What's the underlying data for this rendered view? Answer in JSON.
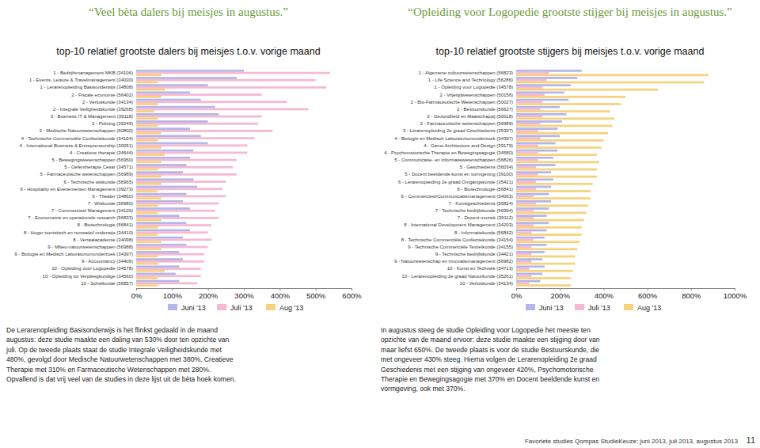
{
  "chart_data": [
    {
      "type": "bar",
      "orientation": "horizontal",
      "title": "top-10 relatief grootste dalers bij meisjes t.o.v. vorige maand",
      "annotations": [
        "“Veel bèta dalers bij meisjes in augustus.”",
        "De Lerarenopleiding Basisonderwijs is het flinkst gedaald in de maand augustus: deze studie maakte een daling van 530% door ten opzichte van juli. Op de tweede plaats staat de studie Integrale Veiligheidskunde met 480%, gevolgd door Medische Natuurwetenschappen met 380%, Creatieve Therapie met 310% en Farmaceutische Wetenschappen met 280%. Opvallend is dat vrij veel van de studies in deze lijst uit de bèta hoek komen."
      ],
      "categories": [
        "1 - Bedrijfsmanagement MKB (34106)",
        "1 - Events, Leisure & Travelmanagement (34030)",
        "1 - Lerarenopleiding Basisonderwijs (34808)",
        "2 - Fiscale economie (56402)",
        "2 - Verloskunde (34134)",
        "2 - Integrale Veiligheidskunde (39268)",
        "3 - Business IT & Management (39118)",
        "3 - Policing (39249)",
        "3 - Medische Natuurwetenschappen (50800)",
        "4 - Technische Commerciële Confectiekunde (34154)",
        "4 - International Business & Entrepreneurship (30051)",
        "4 - Creatieve therapie (34644)",
        "5 - Bewegingswetenschappen (56950)",
        "5 - Oefentherapie Cesar (34571)",
        "5 - Farmaceutische wetenschappen (56989)",
        "6 - Technische wiskunde (56965)",
        "6 - Hospitality en Evenementen Management (39273)",
        "6 - Theater (34860)",
        "7 - Wiskunde (56980)",
        "7 - Commercieel Management (34126)",
        "7 - Econometrie en operationele research (56833)",
        "8 - Biotechnologie (56841)",
        "8 - Hoger toeristisch en recreatief onderwijs (34410)",
        "8 - Vertaalacademie (34098)",
        "9 - Milieu-natuurwetenschappen (56988)",
        "9 - Biologie en Medisch Laboratoriumonderzoek (34397)",
        "9 - Accountancy (34406)",
        "10 - Opleiding voor Logopedie (34578)",
        "10 - Opleiding tot Verpleegkundige (34560)",
        "10 - Scheikunde (56857)"
      ],
      "series": [
        {
          "name": "Juni '13",
          "color": "#b3b6e8",
          "values": [
            300,
            280,
            200,
            150,
            180,
            220,
            230,
            200,
            150,
            180,
            200,
            160,
            150,
            140,
            130,
            160,
            170,
            140,
            130,
            150,
            120,
            140,
            150,
            130,
            140,
            120,
            130,
            120,
            110,
            120
          ]
        },
        {
          "name": "Juli '13",
          "color": "#f5b9d3",
          "values": [
            540,
            500,
            530,
            350,
            420,
            480,
            350,
            340,
            380,
            330,
            310,
            310,
            280,
            270,
            280,
            250,
            240,
            250,
            230,
            220,
            230,
            210,
            200,
            210,
            200,
            190,
            190,
            180,
            180,
            170
          ]
        },
        {
          "name": "Aug '13",
          "color": "#f6d27e",
          "values": [
            70,
            60,
            80,
            70,
            60,
            50,
            60,
            60,
            70,
            60,
            70,
            80,
            70,
            60,
            70,
            70,
            60,
            70,
            60,
            60,
            70,
            60,
            60,
            70,
            70,
            60,
            60,
            80,
            60,
            60
          ]
        }
      ],
      "xlim": [
        0,
        600
      ],
      "xticks": [
        {
          "value": 0,
          "label": "0%"
        },
        {
          "value": 100,
          "label": "100%"
        },
        {
          "value": 200,
          "label": "200%"
        },
        {
          "value": 300,
          "label": "300%"
        },
        {
          "value": 400,
          "label": "400%"
        },
        {
          "value": 500,
          "label": "500%"
        },
        {
          "value": 600,
          "label": "600%"
        }
      ],
      "grid": false,
      "legend": "bottom"
    },
    {
      "type": "bar",
      "orientation": "horizontal",
      "title": "top-10 relatief grootste stijgers bij meisjes t.o.v. vorige maand",
      "annotations": [
        "“Opleiding voor Logopedie grootste stijger bij meisjes in augustus.”",
        "In augustus steeg de studie Opleiding voor Logopedie het meeste ten opzichte van de maand ervoor: deze studie maakte een stijging door van maar liefst 650%. De tweede plaats is voor de studie Bestuurskunde, die met ongeveer 430% steeg. Hierna volgen de Lerarenopleiding 2e graad Geschiedenis met een stijging van ongeveer 420%, Psychomotorische Therapie en Bewegingsagogie met 370% en Docent beeldende kunst en vormgeving, ook met 370%."
      ],
      "categories": [
        "1 - Algemene cultuurwetenschappen (56823)",
        "1 - Life Science and Technology (56286)",
        "1 - Opleiding voor Logopedie (34578)",
        "2 - Vrijetijdwetenschappen (50156)",
        "2 - Bio-Farmaceutische Wetenschappen (50027)",
        "2 - Bestuurskunde (56627)",
        "3 - Gezondheid en Maatschappij (50018)",
        "3 - Farmaceutische wetenschappen (56989)",
        "3 - Lerarenopleiding 2e graad Geschiedenis (35397)",
        "4 - Biologie en Medisch Laboratoriumonderzoek (34397)",
        "4 - Game Architecture and Design (39179)",
        "4 - Psychomotorische Therapie en Bewegingsagogie (34580)",
        "5 - Communicatie- en informatiewetenschappen (56826)",
        "5 - Geschiedenis (56034)",
        "5 - Docent beeldende kunst en vormgeving (39100)",
        "6 - Lerarenopleiding 2e graad Omgangskunde (35421)",
        "6 - Biotechnologie (56841)",
        "6 - Commercieel/Communicatiemanagement (34063)",
        "7 - Kunstgeschiedenis (56824)",
        "7 - Technische bedrijfskunde (56994)",
        "7 - Docent muziek (39112)",
        "8 - International Development Management (34203)",
        "8 - Informatiekunde (56842)",
        "8 - Technische Commerciële Confectiekunde (34154)",
        "9 - Technische Commerciële Textielkunde (34155)",
        "9 - Technische bedrijfskunde (34421)",
        "9 - Natuurwetenschap en innovatiemanagement (56982)",
        "10 - Kunst en Techniek (34713)",
        "10 - Lerarenopleiding 2e graad Natuurkunde (35261)",
        "10 - Verloskunde (34134)"
      ],
      "series": [
        {
          "name": "Juni '13",
          "color": "#b3b6e8",
          "values": [
            300,
            280,
            250,
            220,
            240,
            200,
            230,
            210,
            190,
            200,
            180,
            190,
            170,
            180,
            160,
            170,
            160,
            150,
            160,
            150,
            140,
            150,
            140,
            130,
            140,
            130,
            120,
            130,
            120,
            110
          ]
        },
        {
          "name": "Juli '13",
          "color": "#f5b9d3",
          "values": [
            150,
            140,
            120,
            130,
            120,
            110,
            120,
            110,
            100,
            110,
            100,
            100,
            100,
            90,
            100,
            90,
            90,
            80,
            90,
            80,
            80,
            80,
            70,
            80,
            70,
            70,
            70,
            60,
            70,
            60
          ]
        },
        {
          "name": "Aug '13",
          "color": "#f6d27e",
          "values": [
            880,
            860,
            650,
            500,
            480,
            430,
            450,
            440,
            420,
            400,
            390,
            370,
            380,
            370,
            370,
            350,
            340,
            340,
            330,
            320,
            310,
            300,
            300,
            290,
            280,
            270,
            270,
            260,
            250,
            250
          ]
        }
      ],
      "xlim": [
        0,
        1000
      ],
      "xticks": [
        {
          "value": 0,
          "label": "0%"
        },
        {
          "value": 200,
          "label": "200%"
        },
        {
          "value": 400,
          "label": "400%"
        },
        {
          "value": 600,
          "label": "600%"
        },
        {
          "value": 800,
          "label": "800%"
        },
        {
          "value": 1000,
          "label": "1000%"
        }
      ],
      "grid": false,
      "legend": "bottom"
    }
  ],
  "footer": {
    "source": "Favoriete studies Qompas StudieKeuze: juni 2013, juli 2013, augustus 2013",
    "page": "11"
  }
}
